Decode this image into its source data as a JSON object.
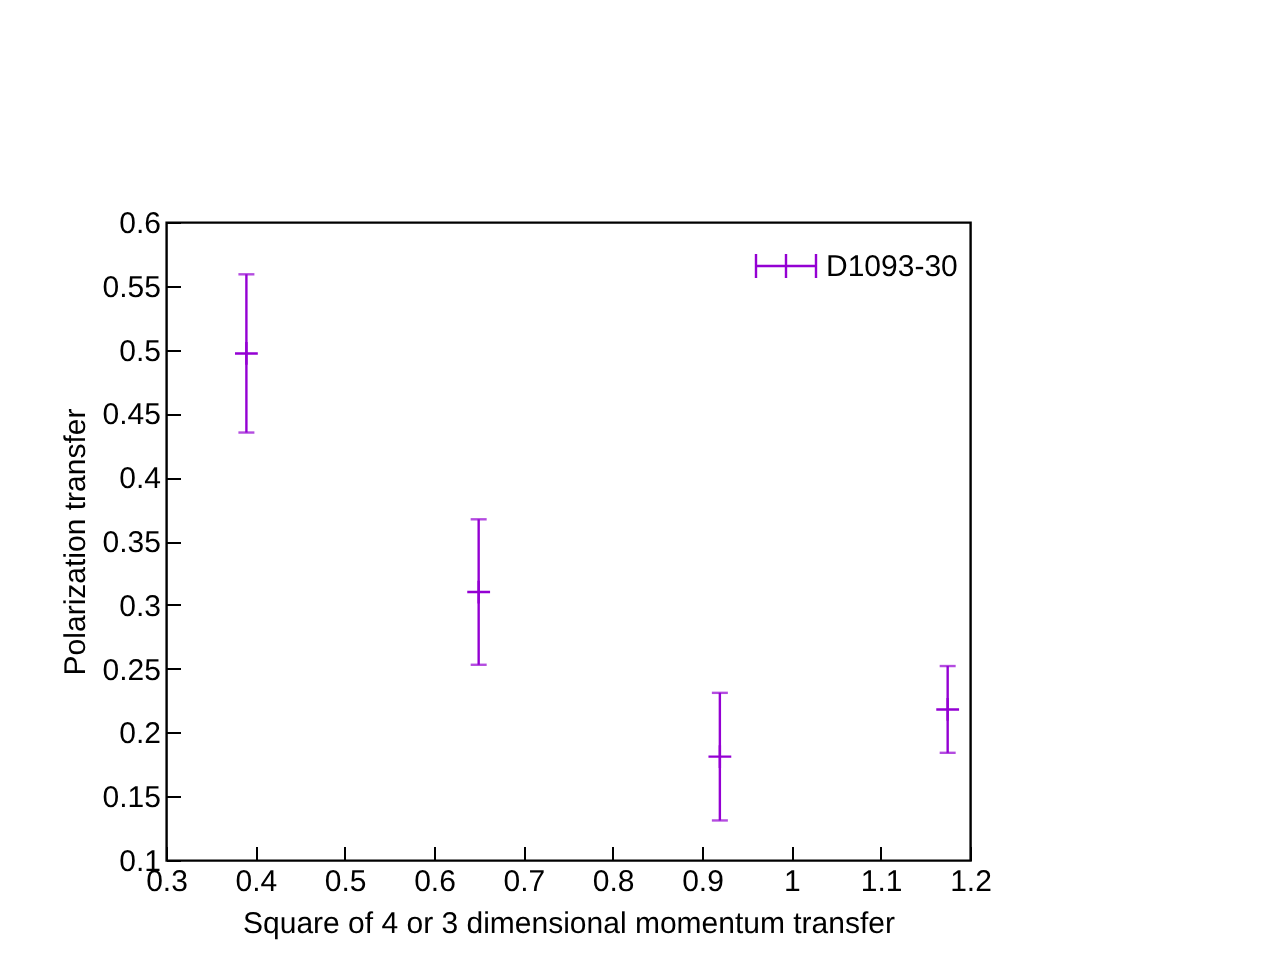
{
  "chart_data": {
    "type": "scatter",
    "xlabel": "Square of 4 or 3 dimensional momentum transfer",
    "ylabel": "Polarization transfer",
    "x": [
      0.39,
      0.65,
      0.92,
      1.175
    ],
    "series": [
      {
        "name": "D1093-30",
        "color": "#9400d3",
        "values": [
          0.497,
          0.31,
          0.181,
          0.218
        ],
        "errors": [
          0.062,
          0.057,
          0.05,
          0.034
        ]
      }
    ],
    "xlim": [
      0.3,
      1.2
    ],
    "xticks": [
      0.3,
      0.4,
      0.5,
      0.6,
      0.7,
      0.8,
      0.9,
      1,
      1.1,
      1.2
    ],
    "ylim": [
      0.1,
      0.6
    ],
    "yticks": [
      0.1,
      0.15,
      0.2,
      0.25,
      0.3,
      0.35,
      0.4,
      0.45,
      0.5,
      0.55,
      0.6
    ],
    "grid": false,
    "legend": "top right",
    "marker": "cross"
  }
}
